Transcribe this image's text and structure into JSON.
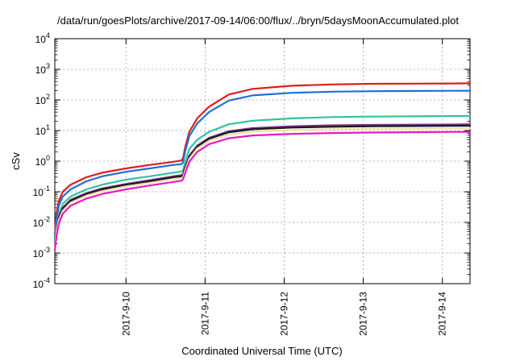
{
  "chart_data": {
    "type": "line",
    "title": "/data/run/goesPlots/archive/2017-09-14/06:00/flux/../bryn/5daysMoonAccumulated.plot",
    "xlabel": "Coordinated Universal Time (UTC)",
    "ylabel": "cSv",
    "yscale": "log",
    "ylim": [
      0.0001,
      10000
    ],
    "xlim": [
      0,
      5.25
    ],
    "grid": true,
    "x_ticks": [
      {
        "x": 0.9,
        "label": "2017-9-10"
      },
      {
        "x": 1.9,
        "label": "2017-9-11"
      },
      {
        "x": 2.9,
        "label": "2017-9-12"
      },
      {
        "x": 3.9,
        "label": "2017-9-13"
      },
      {
        "x": 4.9,
        "label": "2017-9-14"
      }
    ],
    "y_ticks": [
      {
        "v": 0.0001,
        "base": "10",
        "exp": "-4"
      },
      {
        "v": 0.001,
        "base": "10",
        "exp": "-3"
      },
      {
        "v": 0.01,
        "base": "10",
        "exp": "-2"
      },
      {
        "v": 0.1,
        "base": "10",
        "exp": "-1"
      },
      {
        "v": 1,
        "base": "10",
        "exp": "0"
      },
      {
        "v": 10,
        "base": "10",
        "exp": "1"
      },
      {
        "v": 100,
        "base": "10",
        "exp": "2"
      },
      {
        "v": 1000,
        "base": "10",
        "exp": "3"
      },
      {
        "v": 10000,
        "base": "10",
        "exp": "4"
      }
    ],
    "x": [
      0.0,
      0.02,
      0.05,
      0.1,
      0.2,
      0.4,
      0.6,
      0.9,
      1.2,
      1.5,
      1.6,
      1.62,
      1.65,
      1.7,
      1.8,
      1.95,
      2.2,
      2.5,
      3.0,
      3.5,
      4.0,
      4.5,
      5.0,
      5.25
    ],
    "series": [
      {
        "color": "#e41a1c",
        "values": [
          0.004,
          0.02,
          0.05,
          0.1,
          0.17,
          0.3,
          0.42,
          0.58,
          0.75,
          0.95,
          1.05,
          1.2,
          3.0,
          9.0,
          25.0,
          60.0,
          150.0,
          230.0,
          290.0,
          320.0,
          335.0,
          340.0,
          345.0,
          348.0
        ]
      },
      {
        "color": "#1f6fd8",
        "values": [
          0.003,
          0.012,
          0.035,
          0.07,
          0.12,
          0.22,
          0.32,
          0.45,
          0.58,
          0.75,
          0.8,
          0.9,
          2.2,
          6.5,
          17.0,
          40.0,
          95.0,
          140.0,
          170.0,
          185.0,
          192.0,
          196.0,
          198.0,
          200.0
        ]
      },
      {
        "color": "#2ec4a0",
        "values": [
          0.0025,
          0.007,
          0.018,
          0.04,
          0.07,
          0.12,
          0.17,
          0.25,
          0.32,
          0.42,
          0.46,
          0.5,
          1.0,
          2.5,
          5.0,
          9.0,
          16.0,
          21.0,
          25.0,
          27.5,
          28.5,
          29.0,
          29.8,
          30.0
        ]
      },
      {
        "color": "#7b3294",
        "values": [
          0.002,
          0.006,
          0.015,
          0.03,
          0.055,
          0.09,
          0.13,
          0.18,
          0.24,
          0.32,
          0.35,
          0.38,
          0.65,
          1.5,
          3.2,
          5.8,
          9.5,
          12.0,
          13.8,
          14.8,
          15.3,
          15.6,
          15.8,
          16.0
        ]
      },
      {
        "color": "#1a1a1a",
        "values": [
          0.0018,
          0.0055,
          0.014,
          0.028,
          0.05,
          0.085,
          0.12,
          0.17,
          0.22,
          0.3,
          0.32,
          0.35,
          0.6,
          1.4,
          3.0,
          5.4,
          8.8,
          11.0,
          12.5,
          13.3,
          13.8,
          14.0,
          14.2,
          14.4
        ]
      },
      {
        "color": "#f0e1a6",
        "values": [
          0.0016,
          0.005,
          0.012,
          0.024,
          0.044,
          0.075,
          0.105,
          0.15,
          0.195,
          0.26,
          0.28,
          0.3,
          0.52,
          1.2,
          2.6,
          4.6,
          7.4,
          9.2,
          10.4,
          11.0,
          11.4,
          11.6,
          11.8,
          12.0
        ]
      },
      {
        "color": "#e619c9",
        "values": [
          0.0012,
          0.0035,
          0.009,
          0.019,
          0.035,
          0.06,
          0.085,
          0.12,
          0.16,
          0.21,
          0.23,
          0.25,
          0.42,
          0.95,
          2.0,
          3.6,
          5.6,
          6.9,
          7.8,
          8.3,
          8.6,
          8.8,
          9.0,
          9.1
        ]
      }
    ]
  }
}
